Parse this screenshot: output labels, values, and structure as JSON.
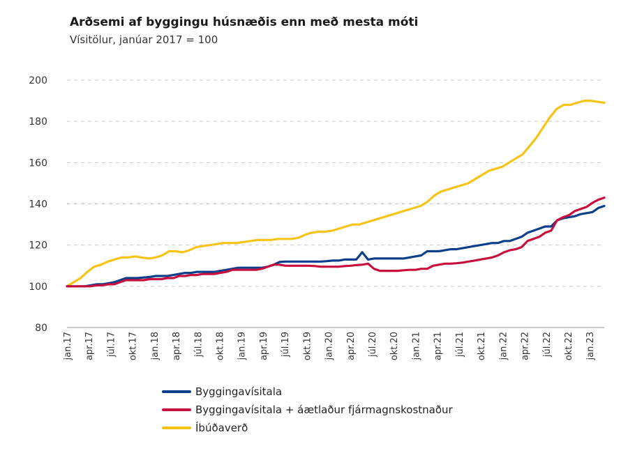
{
  "title": "Arðsemi af byggingu húsnæðis enn með mesta móti",
  "subtitle": "Vísitölur, janúar 2017 = 100",
  "chart_data": {
    "type": "line",
    "ylim": [
      80,
      200
    ],
    "yticks": [
      80,
      100,
      120,
      140,
      160,
      180,
      200
    ],
    "grid": true,
    "legend_position": "bottom",
    "x_tick_labels": [
      "jan.17",
      "apr.17",
      "júl.17",
      "okt.17",
      "jan.18",
      "apr.18",
      "júl.18",
      "okt.18",
      "jan.19",
      "apr.19",
      "júl.19",
      "okt.19",
      "jan.20",
      "apr.20",
      "júl.20",
      "okt.20",
      "jan.21",
      "apr.21",
      "júl.21",
      "okt.21",
      "jan.22",
      "apr.22",
      "júl.22",
      "okt.22",
      "jan.23"
    ],
    "x_tick_months": [
      0,
      3,
      6,
      9,
      12,
      15,
      18,
      21,
      24,
      27,
      30,
      33,
      36,
      39,
      42,
      45,
      48,
      51,
      54,
      57,
      60,
      63,
      66,
      69,
      72
    ],
    "month_count": 75,
    "series": [
      {
        "name": "Byggingavísitala",
        "color": "#0b3f8c",
        "values": [
          100,
          100,
          100,
          100,
          100.5,
          101,
          101,
          101.5,
          102,
          103,
          104,
          104,
          104,
          104.3,
          104.5,
          105,
          105,
          105,
          105.5,
          106,
          106.5,
          106.5,
          107,
          107,
          107,
          107,
          107.5,
          108,
          108.5,
          109,
          109,
          109,
          109,
          109,
          109.5,
          110.5,
          111.8,
          112,
          112,
          112,
          112,
          112,
          112,
          112,
          112.2,
          112.5,
          112.5,
          113,
          113,
          113,
          116.5,
          113,
          113.5,
          113.5,
          113.5,
          113.5,
          113.5,
          113.5,
          114,
          114.5,
          115,
          117,
          117,
          117,
          117.5,
          118,
          118,
          118.5,
          119,
          119.5,
          120,
          120.5,
          121,
          121,
          122,
          122,
          123,
          124,
          126,
          127,
          128,
          129,
          129,
          132,
          133,
          133.5,
          134,
          135,
          135.5,
          136,
          138,
          139
        ]
      },
      {
        "name": "Byggingavísitala + áætlaður fjármagnskostnaður",
        "color": "#c8103e",
        "values": [
          100,
          100,
          100,
          100,
          100,
          100.5,
          100.5,
          101,
          101,
          102,
          103,
          103,
          103,
          103,
          103.5,
          103.5,
          103.5,
          104,
          104,
          105,
          105,
          105.5,
          105.5,
          106,
          106,
          106,
          106.5,
          107,
          108,
          108,
          108,
          108,
          108,
          108.5,
          109.5,
          110.5,
          110.5,
          110,
          110,
          110,
          110,
          110,
          109.8,
          109.5,
          109.5,
          109.5,
          109.5,
          109.8,
          110,
          110.3,
          110.5,
          111,
          108.5,
          107.5,
          107.5,
          107.5,
          107.5,
          107.8,
          108,
          108,
          108.5,
          108.5,
          110,
          110.5,
          111,
          111,
          111.2,
          111.5,
          112,
          112.5,
          113,
          113.5,
          114,
          115,
          116.5,
          117.5,
          118,
          119,
          122,
          123,
          124,
          126,
          127,
          132,
          133.5,
          134.5,
          136.5,
          137.5,
          138.5,
          140.5,
          142,
          143
        ]
      },
      {
        "name": "Íbúðaverð",
        "color": "#f6c316",
        "values": [
          100,
          102,
          104,
          107,
          109.5,
          110.5,
          112,
          113,
          114,
          114,
          114.5,
          114,
          113.5,
          114,
          115,
          117,
          117,
          116.5,
          117.5,
          119,
          119.5,
          120,
          120.5,
          121,
          121,
          121,
          121.5,
          122,
          122.5,
          122.5,
          122.5,
          123,
          123,
          123,
          123.5,
          125,
          126,
          126.5,
          126.5,
          127,
          128,
          129,
          130,
          130,
          131,
          132,
          133,
          134,
          135,
          136,
          137,
          138,
          139,
          141,
          144,
          146,
          147,
          148,
          149,
          150,
          152,
          154,
          156,
          157,
          158,
          160,
          162,
          164,
          168,
          172,
          177,
          182,
          186,
          188,
          188,
          189,
          190,
          190,
          189.5,
          189
        ]
      }
    ]
  }
}
